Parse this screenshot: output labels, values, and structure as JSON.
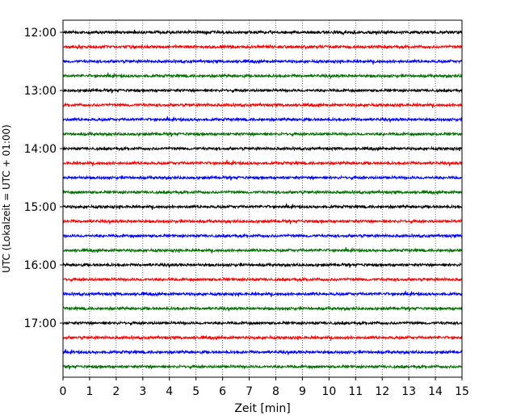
{
  "chart_data": {
    "type": "line",
    "xlabel": "Zeit  [min]",
    "ylabel": "UTC (Lokalzeit = UTC + 01:00)",
    "xlim": [
      0,
      15
    ],
    "x_ticks": [
      0,
      1,
      2,
      3,
      4,
      5,
      6,
      7,
      8,
      9,
      10,
      11,
      12,
      13,
      14,
      15
    ],
    "y_tick_labels": [
      "12:00",
      "13:00",
      "14:00",
      "15:00",
      "16:00",
      "17:00"
    ],
    "trace_start_times": [
      "12:00",
      "12:15",
      "12:30",
      "12:45",
      "13:00",
      "13:15",
      "13:30",
      "13:45",
      "14:00",
      "14:15",
      "14:30",
      "14:45",
      "15:00",
      "15:15",
      "15:30",
      "15:45",
      "16:00",
      "16:15",
      "16:30",
      "16:45",
      "17:00",
      "17:15",
      "17:30",
      "17:45"
    ],
    "trace_colors": [
      "#000000",
      "#ff0000",
      "#0000ff",
      "#007000"
    ],
    "grid": "vertical dotted at each minute",
    "series_description": "24 seismogram traces, 15 minutes each, cycling black/red/blue/green"
  }
}
